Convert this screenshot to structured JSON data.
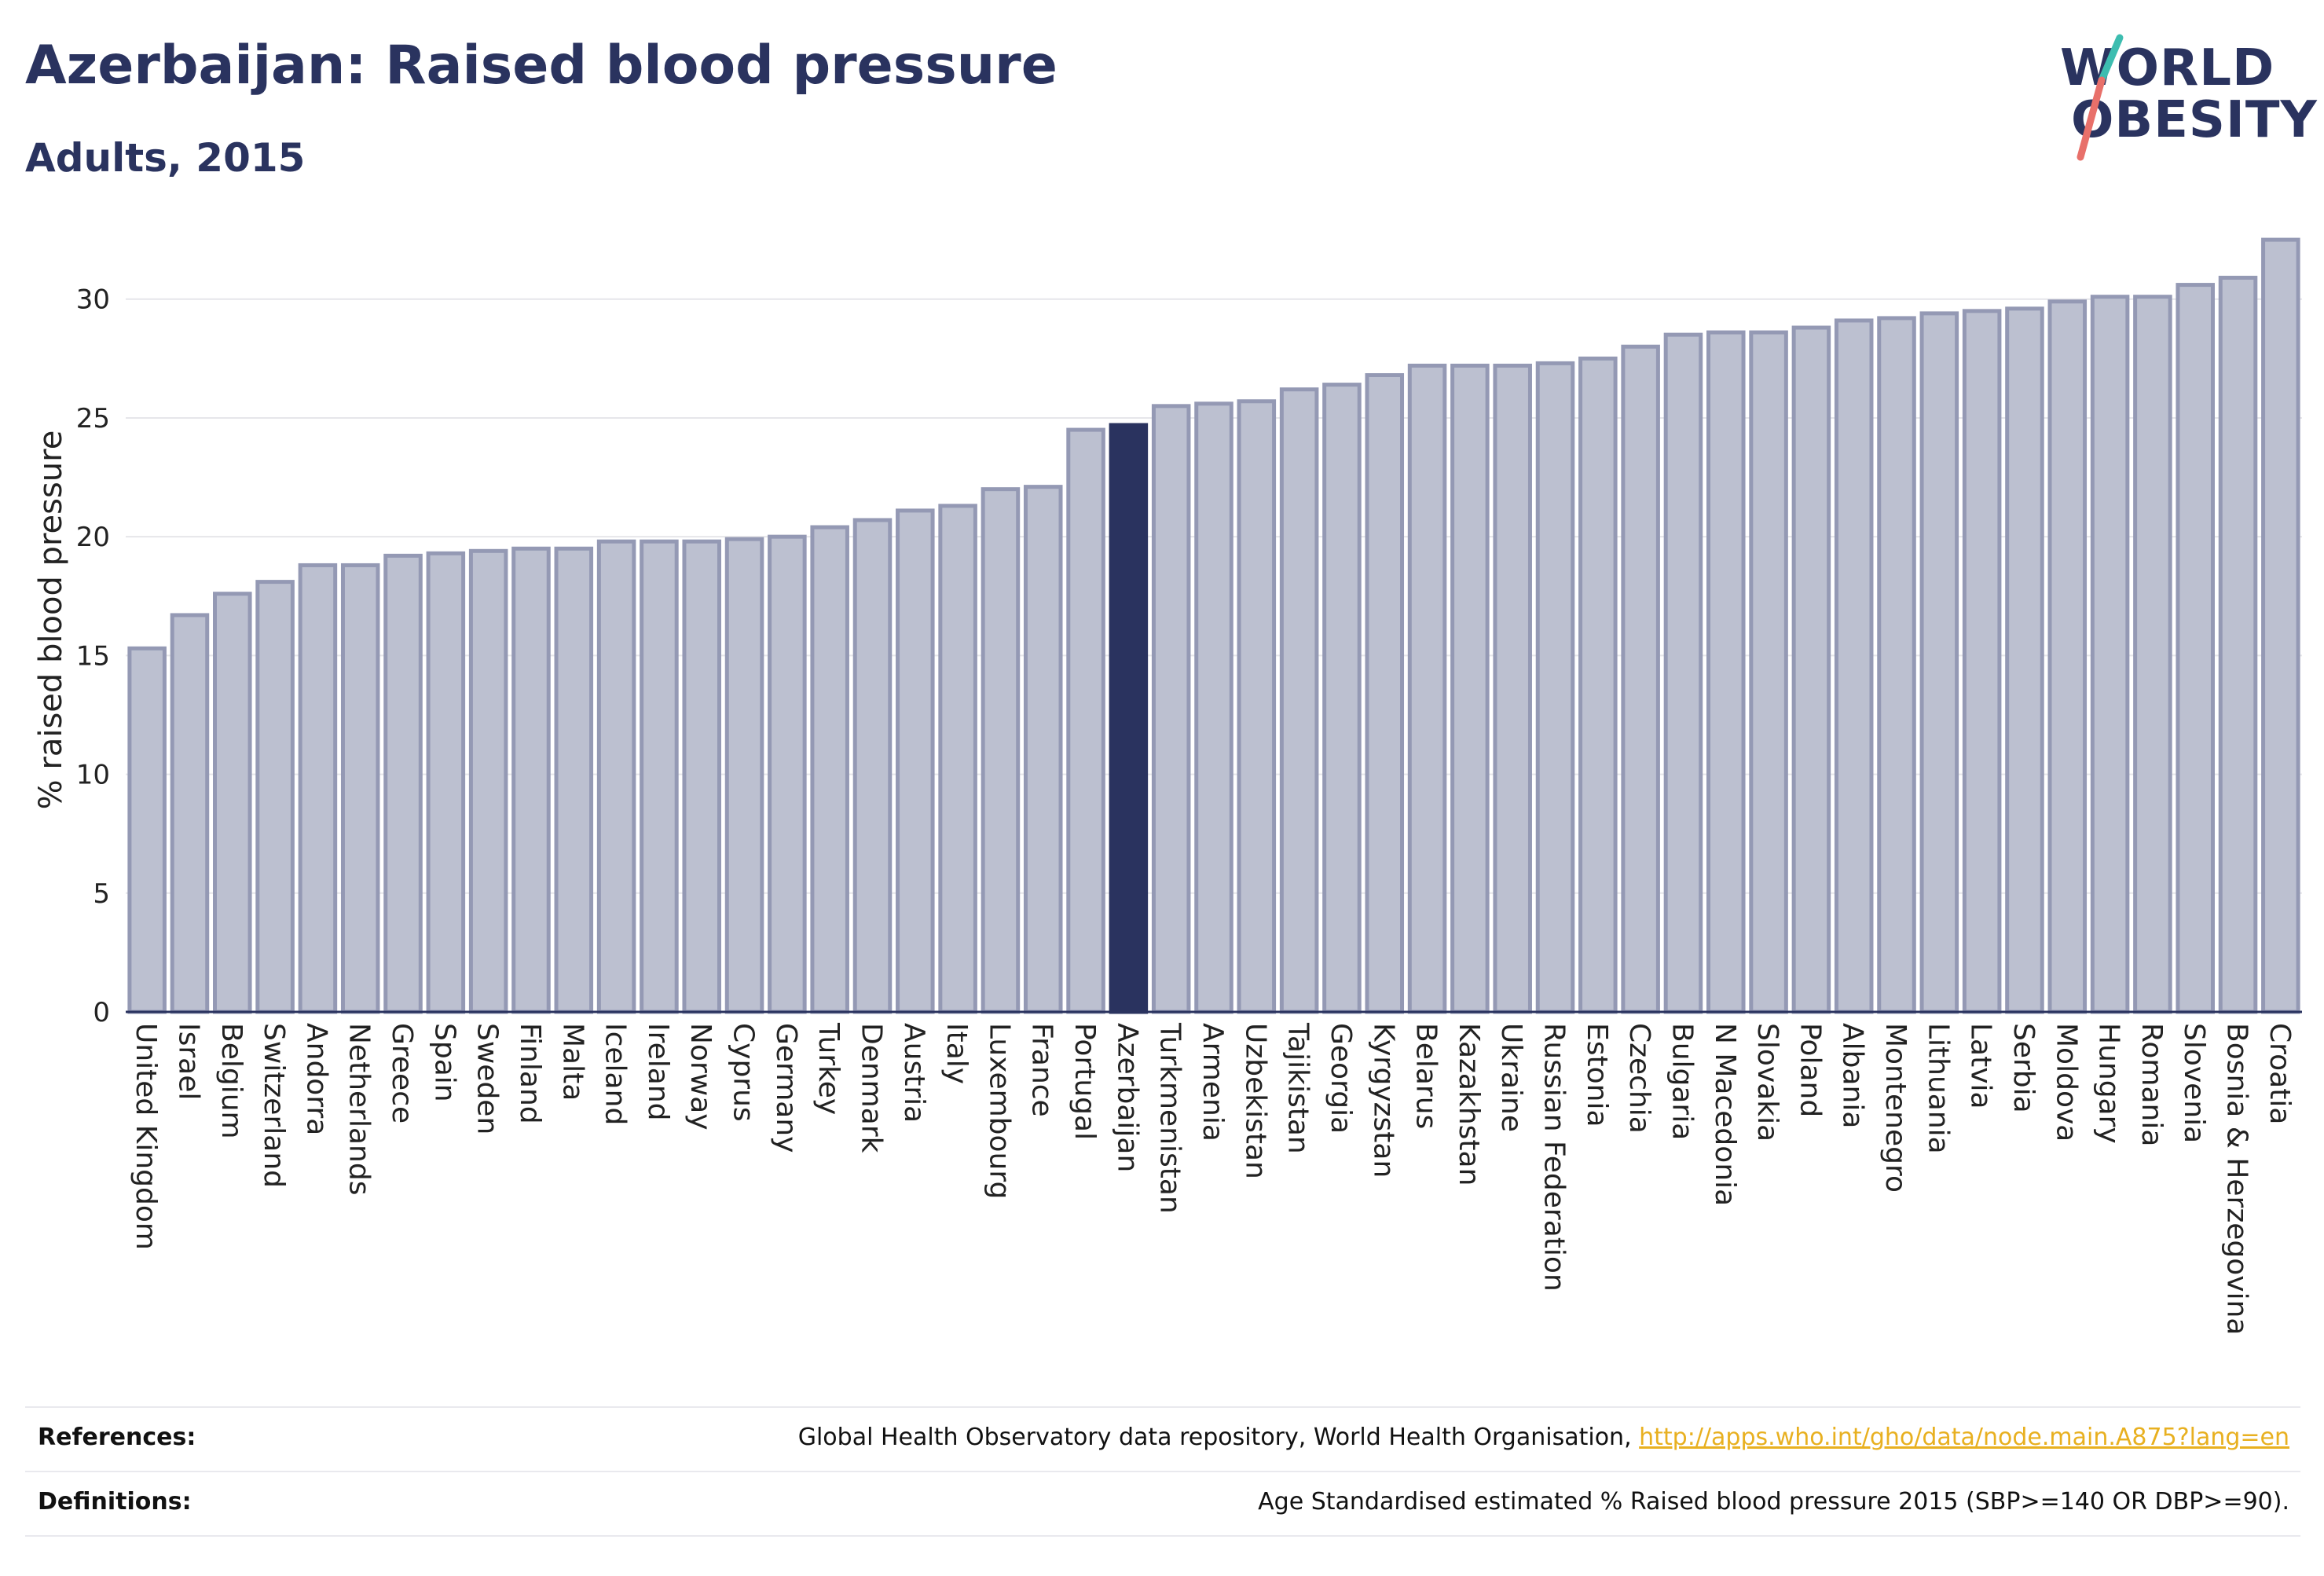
{
  "header": {
    "title": "Azerbaijan: Raised blood pressure",
    "subtitle": "Adults, 2015"
  },
  "logo": {
    "line1": "WORLD",
    "line2": "OBESITY",
    "slash_colors": [
      "#3dbdb0",
      "#e8706a"
    ]
  },
  "colors": {
    "bar_default": "#bcc0d0",
    "bar_default_stroke": "#9499b4",
    "bar_highlight": "#2a335f",
    "text": "#2a335f",
    "grid": "#e6e6ea",
    "link": "#e8b020"
  },
  "chart_data": {
    "type": "bar",
    "ylabel": "% raised blood pressure",
    "xlabel": "",
    "ylim": [
      0,
      33
    ],
    "yticks": [
      0,
      5,
      10,
      15,
      20,
      25,
      30
    ],
    "grid": true,
    "highlight": "Azerbaijan",
    "categories": [
      "United Kingdom",
      "Israel",
      "Belgium",
      "Switzerland",
      "Andorra",
      "Netherlands",
      "Greece",
      "Spain",
      "Sweden",
      "Finland",
      "Malta",
      "Iceland",
      "Ireland",
      "Norway",
      "Cyprus",
      "Germany",
      "Turkey",
      "Denmark",
      "Austria",
      "Italy",
      "Luxembourg",
      "France",
      "Portugal",
      "Azerbaijan",
      "Turkmenistan",
      "Armenia",
      "Uzbekistan",
      "Tajikistan",
      "Georgia",
      "Kyrgyzstan",
      "Belarus",
      "Kazakhstan",
      "Ukraine",
      "Russian Federation",
      "Estonia",
      "Czechia",
      "Bulgaria",
      "N Macedonia",
      "Slovakia",
      "Poland",
      "Albania",
      "Montenegro",
      "Lithuania",
      "Latvia",
      "Serbia",
      "Moldova",
      "Hungary",
      "Romania",
      "Slovenia",
      "Bosnia & Herzegovina",
      "Croatia"
    ],
    "values": [
      15.3,
      16.7,
      17.6,
      18.1,
      18.8,
      18.8,
      19.2,
      19.3,
      19.4,
      19.5,
      19.5,
      19.8,
      19.8,
      19.8,
      19.9,
      20.0,
      20.4,
      20.7,
      21.1,
      21.3,
      22.0,
      22.1,
      24.5,
      24.7,
      25.5,
      25.6,
      25.7,
      26.2,
      26.4,
      26.8,
      27.2,
      27.2,
      27.2,
      27.3,
      27.5,
      28.0,
      28.5,
      28.6,
      28.6,
      28.8,
      29.1,
      29.2,
      29.4,
      29.5,
      29.6,
      29.9,
      30.1,
      30.1,
      30.6,
      30.9,
      32.5
    ]
  },
  "footer": {
    "references_label": "References:",
    "references_text": "Global Health Observatory data repository, World Health Organisation, ",
    "references_link": "http://apps.who.int/gho/data/node.main.A875?lang=en",
    "definitions_label": "Definitions:",
    "definitions_text": "Age Standardised estimated % Raised blood pressure 2015 (SBP>=140 OR DBP>=90)."
  }
}
